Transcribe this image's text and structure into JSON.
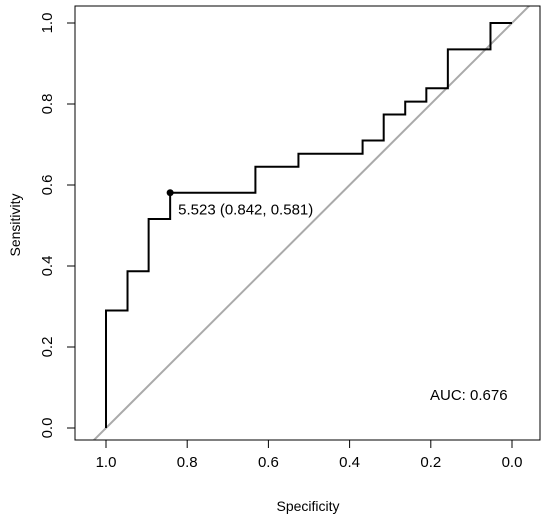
{
  "chart_data": {
    "type": "line",
    "title": "",
    "xlabel": "Specificity",
    "ylabel": "Sensitivity",
    "x_reversed": true,
    "xlim": [
      1.0,
      0.0
    ],
    "ylim": [
      0.0,
      1.0
    ],
    "x_ticks": [
      1.0,
      0.8,
      0.6,
      0.4,
      0.2,
      0.0
    ],
    "x_tick_labels": [
      "1.0",
      "0.8",
      "0.6",
      "0.4",
      "0.2",
      "0.0"
    ],
    "y_ticks": [
      0.0,
      0.2,
      0.4,
      0.6,
      0.8,
      1.0
    ],
    "y_tick_labels": [
      "0.0",
      "0.2",
      "0.4",
      "0.6",
      "0.8",
      "1.0"
    ],
    "grid": false,
    "series": [
      {
        "style": "step",
        "color": "#000000",
        "points": [
          {
            "x": 1.0,
            "y": 0.0
          },
          {
            "x": 1.0,
            "y": 0.29
          },
          {
            "x": 0.947,
            "y": 0.29
          },
          {
            "x": 0.947,
            "y": 0.387
          },
          {
            "x": 0.895,
            "y": 0.387
          },
          {
            "x": 0.895,
            "y": 0.516
          },
          {
            "x": 0.842,
            "y": 0.516
          },
          {
            "x": 0.842,
            "y": 0.581
          },
          {
            "x": 0.632,
            "y": 0.581
          },
          {
            "x": 0.632,
            "y": 0.645
          },
          {
            "x": 0.526,
            "y": 0.645
          },
          {
            "x": 0.526,
            "y": 0.677
          },
          {
            "x": 0.368,
            "y": 0.677
          },
          {
            "x": 0.368,
            "y": 0.71
          },
          {
            "x": 0.316,
            "y": 0.71
          },
          {
            "x": 0.316,
            "y": 0.774
          },
          {
            "x": 0.263,
            "y": 0.774
          },
          {
            "x": 0.263,
            "y": 0.806
          },
          {
            "x": 0.211,
            "y": 0.806
          },
          {
            "x": 0.211,
            "y": 0.839
          },
          {
            "x": 0.158,
            "y": 0.839
          },
          {
            "x": 0.158,
            "y": 0.935
          },
          {
            "x": 0.053,
            "y": 0.935
          },
          {
            "x": 0.053,
            "y": 1.0
          },
          {
            "x": 0.0,
            "y": 1.0
          }
        ]
      }
    ],
    "reference_line": {
      "from": [
        1.05,
        -0.05
      ],
      "to": [
        -0.05,
        1.05
      ],
      "color": "#aaaaaa"
    },
    "best_threshold_point": {
      "x": 0.842,
      "y": 0.581
    },
    "annotations": {
      "threshold_label": "5.523 (0.842, 0.581)",
      "auc_label": "AUC: 0.676"
    }
  }
}
